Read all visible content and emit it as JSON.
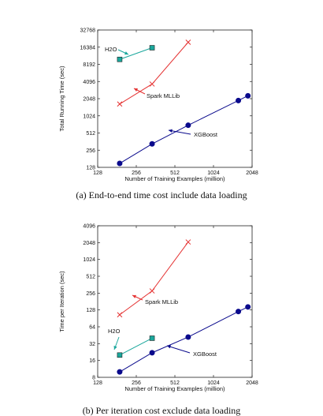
{
  "chart_data": [
    {
      "type": "line",
      "log_scale": {
        "x": 2,
        "y": 2
      },
      "xlabel": "Number of Training Examples (million)",
      "ylabel": "Total Running Time (sec)",
      "xlim": [
        128,
        2048
      ],
      "ylim": [
        128,
        32768
      ],
      "x_ticks": [
        "128",
        "256",
        "512",
        "1024",
        "2048"
      ],
      "y_ticks": [
        "128",
        "256",
        "512",
        "1024",
        "2048",
        "4096",
        "8192",
        "16384",
        "32768"
      ],
      "caption": "(a) End-to-end time cost include data loading",
      "series": [
        {
          "name": "XGBoost",
          "marker": "circle",
          "color": "#0a0a8c",
          "x": [
            190,
            340,
            650,
            1600,
            1900
          ],
          "y": [
            150,
            330,
            700,
            1900,
            2300
          ]
        },
        {
          "name": "Spark MLLib",
          "marker": "x",
          "color": "#e53333",
          "x": [
            190,
            340,
            650
          ],
          "y": [
            1650,
            3700,
            20000
          ]
        },
        {
          "name": "H2O",
          "marker": "square",
          "color": "#1aa79c",
          "x": [
            190,
            340
          ],
          "y": [
            10000,
            16000
          ]
        }
      ]
    },
    {
      "type": "line",
      "log_scale": {
        "x": 2,
        "y": 2
      },
      "xlabel": "Number of Training Examples (million)",
      "ylabel": "Time per Iteration (sec)",
      "xlim": [
        128,
        2048
      ],
      "ylim": [
        8,
        4096
      ],
      "x_ticks": [
        "128",
        "256",
        "512",
        "1024",
        "2048"
      ],
      "y_ticks": [
        "8",
        "16",
        "32",
        "64",
        "128",
        "256",
        "512",
        "1024",
        "2048",
        "4096"
      ],
      "caption": "(b) Per iteration cost exclude data loading",
      "series": [
        {
          "name": "XGBoost",
          "marker": "circle",
          "color": "#0a0a8c",
          "x": [
            190,
            340,
            650,
            1600,
            1900
          ],
          "y": [
            10,
            22,
            42,
            120,
            145
          ]
        },
        {
          "name": "Spark MLLib",
          "marker": "x",
          "color": "#e53333",
          "x": [
            190,
            340,
            650
          ],
          "y": [
            105,
            280,
            2100
          ]
        },
        {
          "name": "H2O",
          "marker": "square",
          "color": "#1aa79c",
          "x": [
            190,
            340
          ],
          "y": [
            20,
            40
          ]
        }
      ]
    }
  ]
}
